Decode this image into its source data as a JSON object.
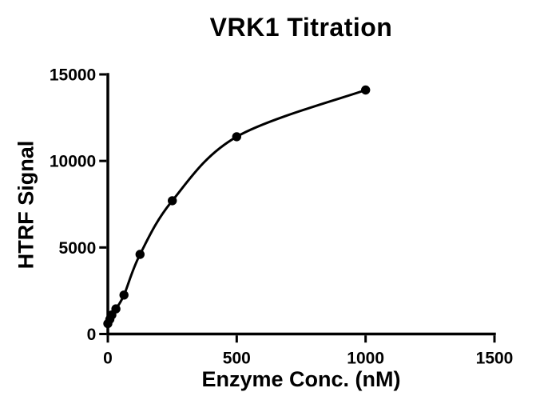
{
  "figure": {
    "background": "#ffffff"
  },
  "chart_data": {
    "type": "scatter",
    "title": "VRK1 Titration",
    "xlabel": "Enzyme Conc. (nM)",
    "ylabel": "HTRF Signal",
    "xlim": [
      0,
      1500
    ],
    "ylim": [
      0,
      15000
    ],
    "x_ticks": [
      0,
      500,
      1000,
      1500
    ],
    "y_ticks": [
      0,
      5000,
      10000,
      15000
    ],
    "grid": false,
    "legend": "none",
    "axis_color": "#000000",
    "line_color": "#000000",
    "marker_color": "#000000",
    "marker": "filled-circle",
    "series": [
      {
        "name": "VRK1",
        "fit_line": true,
        "x": [
          0,
          7.8,
          15.6,
          31.3,
          62.5,
          125,
          250,
          500,
          1000
        ],
        "y": [
          600,
          850,
          1100,
          1450,
          2250,
          4600,
          7700,
          11400,
          14100
        ]
      }
    ]
  }
}
